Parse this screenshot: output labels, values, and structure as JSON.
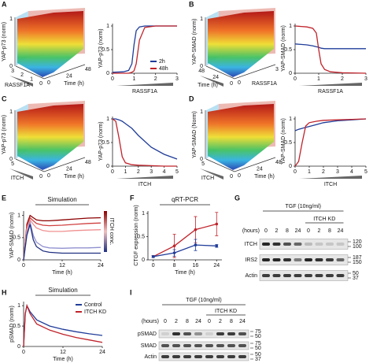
{
  "panels": [
    "A",
    "B",
    "C",
    "D",
    "E",
    "F",
    "G",
    "H",
    "I"
  ],
  "surfaces": [
    {
      "z_label": "YAP-p73 (norm)",
      "z_ticks": [
        0,
        1
      ],
      "a_label": "RASSF1A",
      "a_ticks": [
        3,
        2,
        1,
        0
      ],
      "b_label": "Time (h)",
      "b_ticks": [
        0,
        24,
        48
      ]
    },
    {
      "z_label": "YAP-SMAD (norm)",
      "z_ticks": [
        0,
        1
      ],
      "a_label": "Time (h)",
      "a_ticks": [
        48,
        24,
        0
      ],
      "b_label": "RASSF1A",
      "b_ticks": [
        0,
        3
      ]
    },
    {
      "z_label": "YAP-p73 (norm)",
      "z_ticks": [
        0,
        1
      ],
      "a_label": "ITCH",
      "a_ticks": [
        5,
        0
      ],
      "b_label": "Time (h)",
      "b_ticks": [
        0,
        24,
        48
      ]
    },
    {
      "z_label": "YAP-SMAD (Norm)",
      "z_ticks": [
        0,
        1
      ],
      "a_label": "ITCH",
      "a_ticks": [
        5,
        0
      ],
      "b_label": "Time (h)",
      "b_ticks": [
        0,
        24,
        48
      ]
    }
  ],
  "chart_data": [
    {
      "type": "line",
      "y_label": "YAP-p73 (norm)",
      "x_label": "RASSF1A",
      "x": [
        0,
        0.5,
        0.75,
        0.9,
        1,
        1.1,
        1.25,
        1.5,
        2,
        3
      ],
      "xlim": [
        0,
        3
      ],
      "xticks": [
        0,
        1,
        2,
        3
      ],
      "ylim": [
        0,
        1.05
      ],
      "yticks": [
        0,
        0.5,
        1
      ],
      "legend": "lower right",
      "series": [
        {
          "name": "2h",
          "color": "#1f3c99",
          "values": [
            0.02,
            0.03,
            0.06,
            0.2,
            0.6,
            0.9,
            0.98,
            1,
            1,
            1
          ]
        },
        {
          "name": "48h",
          "color": "#c0232b",
          "values": [
            0,
            0,
            0,
            0.02,
            0.05,
            0.2,
            0.7,
            0.97,
            1,
            1
          ]
        }
      ]
    },
    {
      "type": "line",
      "y_label": "YAP-SMAD (norm)",
      "x_label": "RASSF1A",
      "x": [
        0,
        0.5,
        0.75,
        0.9,
        1,
        1.1,
        1.25,
        1.5,
        2,
        3
      ],
      "xlim": [
        0,
        3
      ],
      "xticks": [
        0,
        1,
        2,
        3
      ],
      "ylim": [
        0,
        1.05
      ],
      "yticks": [
        0,
        0.5,
        1
      ],
      "series": [
        {
          "color": "#1f3c99",
          "values": [
            0.62,
            0.6,
            0.58,
            0.56,
            0.55,
            0.53,
            0.52,
            0.52,
            0.52,
            0.52
          ]
        },
        {
          "color": "#c0232b",
          "values": [
            1,
            0.98,
            0.95,
            0.85,
            0.5,
            0.2,
            0.08,
            0.03,
            0.01,
            0
          ]
        }
      ]
    },
    {
      "type": "line",
      "y_label": "YAP-p73 (norm)",
      "x_label": "ITCH",
      "x": [
        0,
        0.25,
        0.5,
        0.75,
        1,
        1.5,
        2,
        3,
        4,
        5
      ],
      "xlim": [
        0,
        5
      ],
      "xticks": [
        0,
        1,
        2,
        3,
        4,
        5
      ],
      "ylim": [
        0,
        1.05
      ],
      "yticks": [
        0,
        0.5,
        1
      ],
      "series": [
        {
          "color": "#1f3c99",
          "values": [
            1,
            1,
            0.98,
            0.95,
            0.9,
            0.8,
            0.65,
            0.4,
            0.25,
            0.15
          ]
        },
        {
          "color": "#c0232b",
          "values": [
            1,
            0.95,
            0.6,
            0.2,
            0.07,
            0.03,
            0.02,
            0.01,
            0,
            0
          ]
        }
      ]
    },
    {
      "type": "line",
      "y_label": "YAP-SMAD (norm)",
      "x_label": "ITCH",
      "x": [
        0,
        0.25,
        0.5,
        0.75,
        1,
        1.5,
        2,
        3,
        4,
        5
      ],
      "xlim": [
        0,
        5
      ],
      "xticks": [
        0,
        1,
        2,
        3,
        4,
        5
      ],
      "ylim": [
        0,
        1.05
      ],
      "yticks": [
        0,
        0.5,
        1
      ],
      "series": [
        {
          "color": "#1f3c99",
          "values": [
            0.75,
            0.78,
            0.8,
            0.82,
            0.84,
            0.88,
            0.92,
            0.96,
            0.98,
            1
          ]
        },
        {
          "color": "#c0232b",
          "values": [
            0,
            0.1,
            0.5,
            0.85,
            0.92,
            0.95,
            0.97,
            0.98,
            0.99,
            1
          ]
        }
      ]
    },
    {
      "type": "line",
      "title": "Simulation",
      "y_label": "YAP-SMAD (norm)",
      "x_label": "Time (h)",
      "colorbar_label": "ITCH conc.",
      "x": [
        0,
        1,
        2,
        3,
        4,
        6,
        8,
        12,
        16,
        20,
        24
      ],
      "xlim": [
        0,
        24
      ],
      "xticks": [
        0,
        12,
        24
      ],
      "ylim": [
        0,
        1.1
      ],
      "yticks": [
        0,
        0.5,
        1
      ],
      "series": [
        {
          "color": "#8b0000",
          "values": [
            0,
            0.8,
            1,
            0.95,
            0.9,
            0.88,
            0.88,
            0.9,
            0.92,
            0.94,
            0.95
          ]
        },
        {
          "color": "#d04040",
          "values": [
            0,
            0.75,
            0.95,
            0.88,
            0.82,
            0.78,
            0.77,
            0.78,
            0.8,
            0.82,
            0.83
          ]
        },
        {
          "color": "#f09090",
          "values": [
            0,
            0.7,
            0.9,
            0.8,
            0.72,
            0.66,
            0.64,
            0.64,
            0.66,
            0.67,
            0.68
          ]
        },
        {
          "color": "#9090d0",
          "values": [
            0,
            0.6,
            0.85,
            0.55,
            0.4,
            0.3,
            0.27,
            0.26,
            0.27,
            0.27,
            0.28
          ]
        },
        {
          "color": "#203080",
          "values": [
            0,
            0.55,
            0.8,
            0.45,
            0.3,
            0.2,
            0.17,
            0.15,
            0.15,
            0.15,
            0.15
          ]
        }
      ]
    },
    {
      "type": "errorline",
      "title": "qRT-PCR",
      "y_label": "CTGF expression (norm)",
      "x_label": "Time (h)",
      "x": [
        0,
        8,
        16,
        24
      ],
      "xlim": [
        -2,
        26
      ],
      "xticks": [
        0,
        8,
        16,
        24
      ],
      "ylim": [
        0,
        1.05
      ],
      "yticks": [
        0,
        0.5,
        1
      ],
      "series": [
        {
          "color": "#c0232b",
          "values": [
            0.07,
            0.3,
            0.65,
            0.77
          ],
          "errors": [
            0.02,
            0.25,
            0.28,
            0.25
          ]
        },
        {
          "color": "#1f3c99",
          "values": [
            0.07,
            0.15,
            0.32,
            0.3
          ],
          "errors": [
            0.02,
            0.07,
            0.12,
            0.03
          ]
        }
      ]
    },
    {
      "type": "line",
      "title": "Simulation",
      "y_label": "pSMAD (norm)",
      "x_label": "Time (h)",
      "x": [
        0,
        0.5,
        1,
        2,
        4,
        8,
        12,
        16,
        20,
        24
      ],
      "xlim": [
        0,
        24
      ],
      "xticks": [
        0,
        12,
        24
      ],
      "ylim": [
        0,
        1.1
      ],
      "yticks": [
        0,
        0.5,
        1
      ],
      "legend": "upper right",
      "series": [
        {
          "name": "Control",
          "color": "#1f3c99",
          "values": [
            0,
            0.8,
            1,
            0.85,
            0.65,
            0.5,
            0.42,
            0.36,
            0.31,
            0.27
          ]
        },
        {
          "name": "ITCH KD",
          "color": "#c0232b",
          "values": [
            0,
            0.8,
            1,
            0.8,
            0.55,
            0.4,
            0.3,
            0.22,
            0.16,
            0.1
          ]
        }
      ]
    }
  ],
  "blots": [
    {
      "title": "TGF (10ng/ml)",
      "group": "ITCH KD",
      "hours_label": "(hours)",
      "hours": [
        0,
        2,
        8,
        24,
        0,
        2,
        8,
        24
      ],
      "rows": [
        "ITCH",
        "IRS2",
        "Actin"
      ],
      "markers": [
        120,
        100,
        187,
        150,
        50,
        37
      ]
    },
    {
      "title": "TGF (10ng/ml)",
      "group": "ITCH KD",
      "hours_label": "(hours)",
      "hours": [
        0,
        2,
        8,
        24,
        0,
        2,
        8,
        24
      ],
      "rows": [
        "pSMAD",
        "SMAD",
        "Actin"
      ],
      "markers": [
        75,
        50,
        75,
        50,
        50,
        37
      ]
    }
  ]
}
